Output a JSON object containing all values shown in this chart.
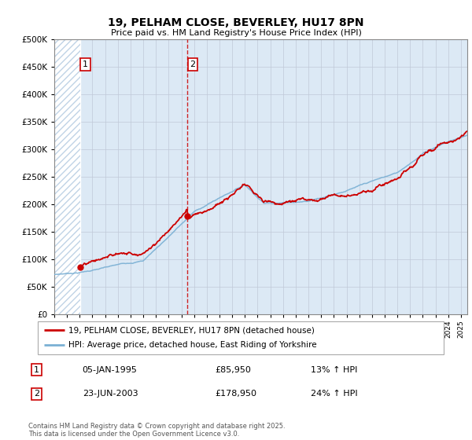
{
  "title": "19, PELHAM CLOSE, BEVERLEY, HU17 8PN",
  "subtitle": "Price paid vs. HM Land Registry's House Price Index (HPI)",
  "legend_line1": "19, PELHAM CLOSE, BEVERLEY, HU17 8PN (detached house)",
  "legend_line2": "HPI: Average price, detached house, East Riding of Yorkshire",
  "transaction1_date": "05-JAN-1995",
  "transaction1_price": "£85,950",
  "transaction1_hpi": "13% ↑ HPI",
  "transaction1_year": 1995.03,
  "transaction1_value": 85950,
  "transaction2_date": "23-JUN-2003",
  "transaction2_price": "£178,950",
  "transaction2_hpi": "24% ↑ HPI",
  "transaction2_year": 2003.48,
  "transaction2_value": 178950,
  "footer": "Contains HM Land Registry data © Crown copyright and database right 2025.\nThis data is licensed under the Open Government Licence v3.0.",
  "price_line_color": "#cc0000",
  "hpi_line_color": "#7ab0d4",
  "vline_color": "#cc0000",
  "chart_bg_color": "#dce9f5",
  "hatch_bg_color": "#ffffff",
  "ylim_max": 500000,
  "xlim_start": 1993,
  "xlim_end": 2025.5
}
